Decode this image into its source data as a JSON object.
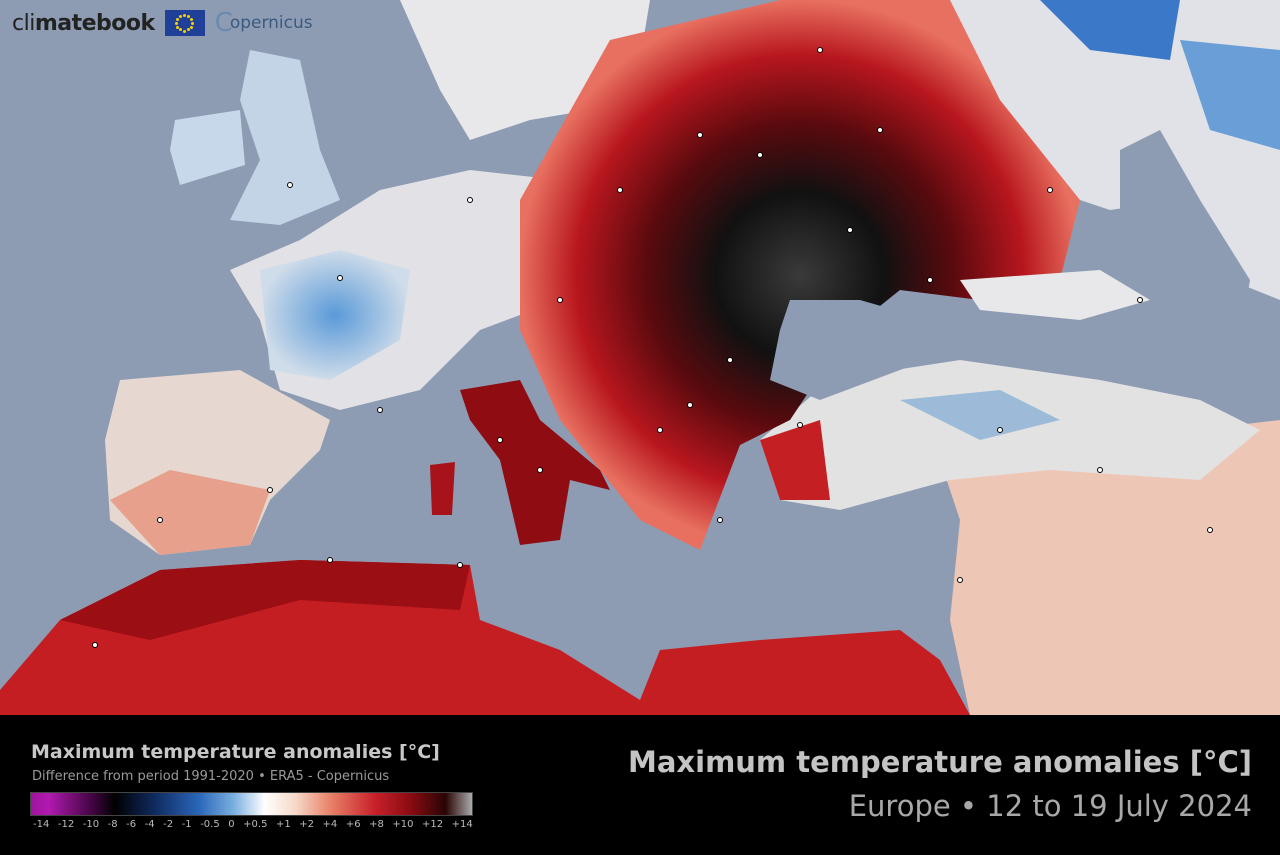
{
  "brand": {
    "name_light": "cli",
    "name_bold": "matebook",
    "partner": "opernicus",
    "partner_initial": "C"
  },
  "legend": {
    "title": "Maximum temperature anomalies [°C]",
    "subtitle": "Difference from period 1991-2020 • ERA5 - Copernicus",
    "ticks": [
      "-14",
      "-12",
      "-10",
      "-8",
      "-6",
      "-4",
      "-2",
      "-1",
      "-0.5",
      "0",
      "+0.5",
      "+1",
      "+2",
      "+4",
      "+6",
      "+8",
      "+10",
      "+12",
      "+14"
    ],
    "colors": {
      "min": "#a0129e",
      "cold": "#2a66b8",
      "neutral": "#ffffff",
      "warm": "#c8202a",
      "max": "#aaaaaa"
    }
  },
  "header": {
    "title": "Maximum temperature anomalies [°C]",
    "subtitle": "Europe • 12 to 19 July 2024"
  },
  "colors": {
    "sea": "#8d9cb3",
    "footer": "#000000"
  }
}
